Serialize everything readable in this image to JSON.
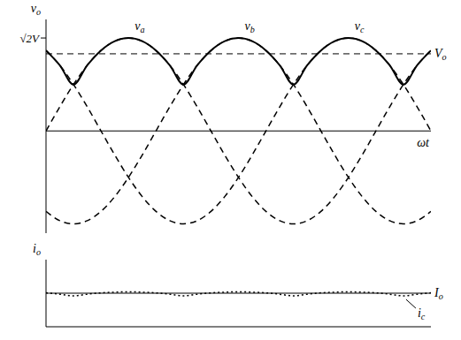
{
  "chart_data": [
    {
      "type": "line",
      "y_label": "vo",
      "x_label": "ωt",
      "tick_labels": "y",
      "x": [
        0,
        15,
        30,
        45,
        60,
        75,
        90,
        105,
        120,
        135,
        150,
        165,
        180,
        195,
        210,
        225,
        240,
        255,
        270,
        285,
        300,
        315,
        330,
        345,
        360,
        375,
        390,
        405,
        420
      ],
      "xlim": [
        0,
        420
      ],
      "ylim": [
        -1.1,
        1.2
      ],
      "yticks": [
        {
          "value": 1,
          "label": "√2V"
        }
      ],
      "hlines": [
        {
          "value": 0.83,
          "label": "Vo",
          "line_style": "dashed"
        }
      ],
      "series": [
        {
          "name": "va",
          "color": "#000000",
          "line_style": "dashed",
          "values": [
            0,
            0.259,
            0.5,
            0.707,
            0.866,
            0.966,
            1,
            0.966,
            0.866,
            0.707,
            0.5,
            0.259,
            0,
            -0.259,
            -0.5,
            -0.707,
            -0.866,
            -0.966,
            -1,
            -0.966,
            -0.866,
            -0.707,
            -0.5,
            -0.259,
            0,
            0.259,
            0.5,
            0.707,
            0.866
          ]
        },
        {
          "name": "vb",
          "color": "#000000",
          "line_style": "dashed",
          "values": [
            -0.866,
            -0.966,
            -1,
            -0.966,
            -0.866,
            -0.707,
            -0.5,
            -0.259,
            0,
            0.259,
            0.5,
            0.707,
            0.866,
            0.966,
            1,
            0.966,
            0.866,
            0.707,
            0.5,
            0.259,
            0,
            -0.259,
            -0.5,
            -0.707,
            -0.866,
            -0.966,
            -1,
            -0.966,
            -0.866
          ]
        },
        {
          "name": "vc",
          "color": "#000000",
          "line_style": "dashed",
          "values": [
            0.866,
            0.707,
            0.5,
            0.259,
            0,
            -0.259,
            -0.5,
            -0.707,
            -0.866,
            -0.966,
            -1,
            -0.966,
            -0.866,
            -0.707,
            -0.5,
            -0.259,
            0,
            0.259,
            0.5,
            0.707,
            0.866,
            0.966,
            1,
            0.966,
            0.866,
            0.707,
            0.5,
            0.259,
            0
          ]
        },
        {
          "name": "vo",
          "color": "#000000",
          "line_style": "solid",
          "values": [
            0.866,
            0.707,
            0.5,
            0.707,
            0.866,
            0.966,
            1,
            0.966,
            0.866,
            0.707,
            0.5,
            0.707,
            0.866,
            0.966,
            1,
            0.966,
            0.866,
            0.707,
            0.5,
            0.707,
            0.866,
            0.966,
            1,
            0.966,
            0.866,
            0.707,
            0.5,
            0.707,
            0.866
          ]
        }
      ]
    },
    {
      "type": "line",
      "y_label": "io",
      "tick_labels": false,
      "x": [
        0,
        15,
        30,
        45,
        60,
        75,
        90,
        105,
        120,
        135,
        150,
        165,
        180,
        195,
        210,
        225,
        240,
        255,
        270,
        285,
        300,
        315,
        330,
        345,
        360,
        375,
        390,
        405,
        420
      ],
      "xlim": [
        0,
        420
      ],
      "ylim": [
        0,
        2
      ],
      "yticks": [],
      "hlines": [
        {
          "value": 1,
          "label": "Io",
          "line_style": "solid"
        }
      ],
      "series": [
        {
          "name": "ic",
          "color": "#000000",
          "line_style": "dotted",
          "values": [
            1.01,
            0.97,
            0.92,
            0.97,
            1.01,
            1.03,
            1.04,
            1.03,
            1.01,
            0.97,
            0.92,
            0.97,
            1.01,
            1.03,
            1.04,
            1.03,
            1.01,
            0.97,
            0.92,
            0.97,
            1.01,
            1.03,
            1.04,
            1.03,
            1.01,
            0.97,
            0.92,
            0.97,
            1.01
          ]
        }
      ]
    }
  ]
}
